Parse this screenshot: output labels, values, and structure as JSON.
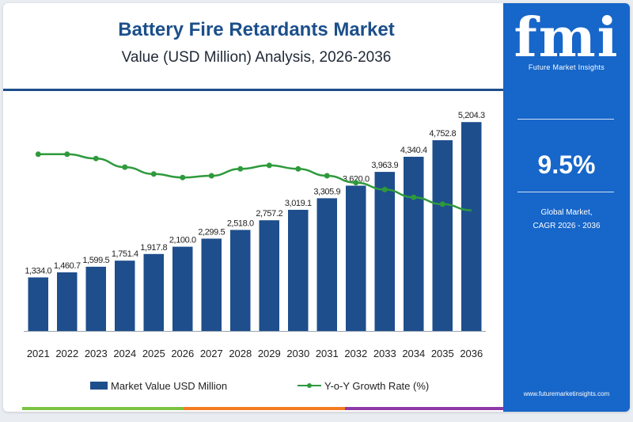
{
  "title": "Battery Fire Retardants Market",
  "subtitle": "Value (USD Million) Analysis, 2026-2036",
  "brand": {
    "logo_mark": "fmi",
    "logo_text": "Future Market Insights",
    "url": "www.futuremarketinsights.com"
  },
  "cagr": {
    "value": "9.5%",
    "label_line1": "Global Market,",
    "label_line2": "CAGR 2026 - 2036"
  },
  "legend": {
    "bar_label": "Market Value USD Million",
    "line_label": "Y-o-Y Growth Rate (%)"
  },
  "colors": {
    "bar": "#1e4e8c",
    "line": "#2e9a3c",
    "sidebar": "#1766c9",
    "accent_bottom": [
      "#7cc242",
      "#f47b20",
      "#8e3aa7"
    ]
  },
  "chart_data": {
    "type": "bar",
    "categories": [
      "2021",
      "2022",
      "2023",
      "2024",
      "2025",
      "2026",
      "2027",
      "2028",
      "2029",
      "2030",
      "2031",
      "2032",
      "2033",
      "2034",
      "2035",
      "2036"
    ],
    "series": [
      {
        "name": "Market Value USD Million",
        "type": "bar",
        "values": [
          1334.0,
          1460.7,
          1599.5,
          1751.4,
          1917.8,
          2100.0,
          2299.5,
          2518.0,
          2757.2,
          3019.1,
          3305.9,
          3620.0,
          3963.9,
          4340.4,
          4752.8,
          5204.3
        ],
        "labels": [
          "1,334.0",
          "1,460.7",
          "1,599.5",
          "1,751.4",
          "1,917.8",
          "2,100.0",
          "2,299.5",
          "2,518.0",
          "2,757.2",
          "3,019.1",
          "3,305.9",
          "3,620.0",
          "3,963.9",
          "4,340.4",
          "4,752.8",
          "5,204.3"
        ]
      },
      {
        "name": "Y-o-Y Growth Rate (%)",
        "type": "line",
        "values": [
          9.55,
          9.55,
          9.5,
          9.4,
          9.32,
          9.28,
          9.3,
          9.38,
          9.42,
          9.38,
          9.3,
          9.22,
          9.14,
          9.05,
          8.97,
          8.9
        ]
      }
    ],
    "ylim": [
      0,
      5800
    ],
    "line_ylim": [
      7.5,
      10.2
    ],
    "xlabel": "",
    "ylabel": "",
    "grid": false,
    "legend_position": "bottom"
  }
}
